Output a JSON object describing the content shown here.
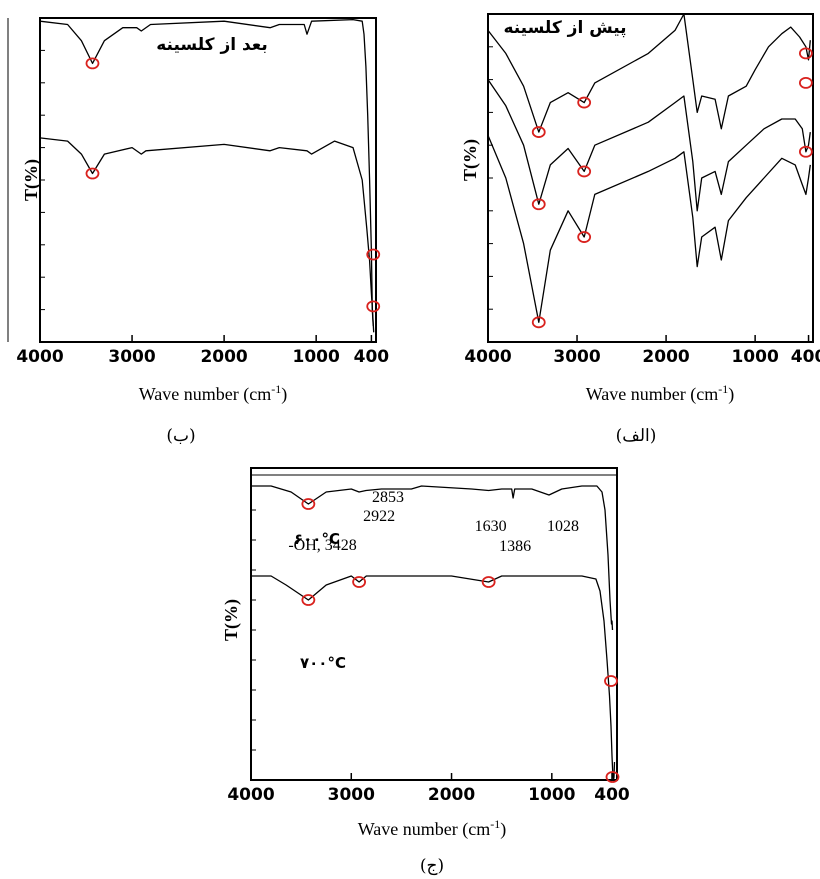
{
  "chart_data": [
    {
      "id": "b",
      "type": "line",
      "title": "بعد از کلسینه",
      "caption": "(ب)",
      "xlabel": "Wave number (cm-1)",
      "ylabel": "T(%)",
      "xlim": [
        4000,
        350
      ],
      "ylim": [
        0,
        100
      ],
      "x_ticks": [
        "4000",
        "3000",
        "2000",
        "1000",
        "400"
      ],
      "series": [
        {
          "values": [
            [
              4000,
              99
            ],
            [
              3700,
              98
            ],
            [
              3550,
              93
            ],
            [
              3430,
              86
            ],
            [
              3300,
              93
            ],
            [
              3100,
              97
            ],
            [
              2950,
              97
            ],
            [
              2900,
              96
            ],
            [
              2800,
              98
            ],
            [
              2000,
              99
            ],
            [
              1500,
              97
            ],
            [
              1400,
              98
            ],
            [
              1130,
              98
            ],
            [
              1100,
              95
            ],
            [
              1050,
              99
            ],
            [
              600,
              99.5
            ],
            [
              500,
              99
            ],
            [
              480,
              95
            ],
            [
              460,
              85
            ],
            [
              440,
              70
            ],
            [
              420,
              50
            ],
            [
              400,
              28
            ],
            [
              390,
              10
            ],
            [
              380,
              5
            ]
          ]
        },
        {
          "values": [
            [
              4000,
              63
            ],
            [
              3700,
              62
            ],
            [
              3550,
              58
            ],
            [
              3430,
              52
            ],
            [
              3300,
              58
            ],
            [
              3000,
              60
            ],
            [
              2900,
              58
            ],
            [
              2850,
              59
            ],
            [
              2000,
              61
            ],
            [
              1500,
              59
            ],
            [
              1400,
              60
            ],
            [
              1100,
              59
            ],
            [
              1050,
              58
            ],
            [
              800,
              62
            ],
            [
              600,
              60
            ],
            [
              500,
              50
            ],
            [
              450,
              35
            ],
            [
              420,
              25
            ],
            [
              400,
              15
            ],
            [
              385,
              8
            ],
            [
              375,
              3
            ]
          ]
        }
      ],
      "markers": [
        [
          3430,
          86
        ],
        [
          3430,
          52
        ],
        [
          380,
          27
        ],
        [
          380,
          11
        ]
      ]
    },
    {
      "id": "alef",
      "type": "line",
      "title": "پیش از کلسینه",
      "caption": "(الف)",
      "xlabel": "Wave number (cm-1)",
      "ylabel": "T(%)",
      "xlim": [
        4000,
        350
      ],
      "ylim": [
        0,
        100
      ],
      "x_ticks": [
        "4000",
        "3000",
        "2000",
        "1000",
        "400"
      ],
      "series": [
        {
          "values": [
            [
              4000,
              95
            ],
            [
              3800,
              88
            ],
            [
              3600,
              78
            ],
            [
              3430,
              64
            ],
            [
              3300,
              73
            ],
            [
              3100,
              76
            ],
            [
              2920,
              73
            ],
            [
              2800,
              79
            ],
            [
              2200,
              88
            ],
            [
              1900,
              95
            ],
            [
              1800,
              100
            ],
            [
              1700,
              80
            ],
            [
              1650,
              70
            ],
            [
              1600,
              75
            ],
            [
              1450,
              74
            ],
            [
              1380,
              65
            ],
            [
              1300,
              75
            ],
            [
              1100,
              78
            ],
            [
              1000,
              83
            ],
            [
              850,
              90
            ],
            [
              700,
              94
            ],
            [
              600,
              96
            ],
            [
              500,
              93
            ],
            [
              430,
              90
            ],
            [
              400,
              86
            ],
            [
              380,
              92
            ]
          ]
        },
        {
          "values": [
            [
              4000,
              80
            ],
            [
              3800,
              72
            ],
            [
              3600,
              60
            ],
            [
              3430,
              42
            ],
            [
              3300,
              54
            ],
            [
              3100,
              59
            ],
            [
              2920,
              52
            ],
            [
              2800,
              60
            ],
            [
              2200,
              67
            ],
            [
              1900,
              73
            ],
            [
              1800,
              75
            ],
            [
              1700,
              55
            ],
            [
              1650,
              40
            ],
            [
              1600,
              50
            ],
            [
              1450,
              52
            ],
            [
              1380,
              45
            ],
            [
              1300,
              55
            ],
            [
              1100,
              60
            ],
            [
              900,
              65
            ],
            [
              700,
              68
            ],
            [
              550,
              68
            ],
            [
              470,
              65
            ],
            [
              430,
              58
            ],
            [
              400,
              60
            ],
            [
              380,
              64
            ]
          ]
        },
        {
          "values": [
            [
              4000,
              63
            ],
            [
              3800,
              50
            ],
            [
              3600,
              30
            ],
            [
              3430,
              6
            ],
            [
              3300,
              28
            ],
            [
              3100,
              40
            ],
            [
              2920,
              32
            ],
            [
              2800,
              45
            ],
            [
              2200,
              52
            ],
            [
              1900,
              56
            ],
            [
              1800,
              58
            ],
            [
              1700,
              38
            ],
            [
              1650,
              23
            ],
            [
              1600,
              32
            ],
            [
              1450,
              35
            ],
            [
              1380,
              25
            ],
            [
              1300,
              37
            ],
            [
              1100,
              44
            ],
            [
              900,
              50
            ],
            [
              700,
              56
            ],
            [
              550,
              54
            ],
            [
              470,
              48
            ],
            [
              430,
              45
            ],
            [
              400,
              50
            ],
            [
              380,
              54
            ]
          ]
        }
      ],
      "markers": [
        [
          3430,
          64
        ],
        [
          2920,
          73
        ],
        [
          430,
          88
        ],
        [
          3430,
          42
        ],
        [
          2920,
          52
        ],
        [
          430,
          58
        ],
        [
          3430,
          6
        ],
        [
          2920,
          32
        ],
        [
          430,
          79
        ]
      ]
    },
    {
      "id": "jim",
      "type": "line",
      "caption": "(ج)",
      "xlabel": "Wave number (cm-1)",
      "ylabel": "T(%)",
      "xlim": [
        4000,
        350
      ],
      "ylim": [
        0,
        100
      ],
      "x_ticks": [
        "4000",
        "3000",
        "2000",
        "1000",
        "400"
      ],
      "curve_labels": [
        "۶۰۰°C",
        "۷۰۰°C"
      ],
      "annotations": [
        {
          "text": "-OH, 3428",
          "x": 3428,
          "y": 86
        },
        {
          "text": "2922",
          "x": 2922,
          "y": 91
        },
        {
          "text": "2853",
          "x": 2853,
          "y": 94
        },
        {
          "text": "1630",
          "x": 1630,
          "y": 89
        },
        {
          "text": "1386",
          "x": 1386,
          "y": 85
        },
        {
          "text": "1028",
          "x": 1028,
          "y": 89
        }
      ],
      "series": [
        {
          "values": [
            [
              4000,
              98
            ],
            [
              3800,
              98
            ],
            [
              3600,
              96
            ],
            [
              3428,
              92
            ],
            [
              3250,
              96
            ],
            [
              3000,
              97
            ],
            [
              2922,
              96
            ],
            [
              2853,
              96.5
            ],
            [
              2700,
              97
            ],
            [
              2400,
              97
            ],
            [
              2300,
              98
            ],
            [
              1800,
              97
            ],
            [
              1630,
              96.5
            ],
            [
              1500,
              97
            ],
            [
              1400,
              97
            ],
            [
              1386,
              94
            ],
            [
              1370,
              97
            ],
            [
              1200,
              97
            ],
            [
              1028,
              95
            ],
            [
              900,
              97
            ],
            [
              700,
              98
            ],
            [
              550,
              98
            ],
            [
              500,
              96
            ],
            [
              470,
              90
            ],
            [
              440,
              75
            ],
            [
              420,
              60
            ],
            [
              405,
              52
            ],
            [
              400,
              53
            ],
            [
              395,
              50
            ]
          ]
        },
        {
          "values": [
            [
              4000,
              68
            ],
            [
              3800,
              68
            ],
            [
              3650,
              65
            ],
            [
              3428,
              60
            ],
            [
              3250,
              65
            ],
            [
              3000,
              68
            ],
            [
              2922,
              66
            ],
            [
              2850,
              68
            ],
            [
              2000,
              68
            ],
            [
              1630,
              66
            ],
            [
              1500,
              68
            ],
            [
              700,
              68
            ],
            [
              560,
              67
            ],
            [
              520,
              63
            ],
            [
              480,
              53
            ],
            [
              450,
              40
            ],
            [
              425,
              28
            ],
            [
              410,
              18
            ],
            [
              400,
              8
            ],
            [
              392,
              2
            ],
            [
              385,
              0
            ],
            [
              380,
              1
            ],
            [
              375,
              6
            ]
          ]
        }
      ],
      "markers": [
        [
          3428,
          92
        ],
        [
          3428,
          60
        ],
        [
          2922,
          66
        ],
        [
          1630,
          66
        ],
        [
          410,
          33
        ],
        [
          395,
          1
        ]
      ]
    }
  ],
  "marker_color": "#d9221e",
  "line_color": "#000000"
}
